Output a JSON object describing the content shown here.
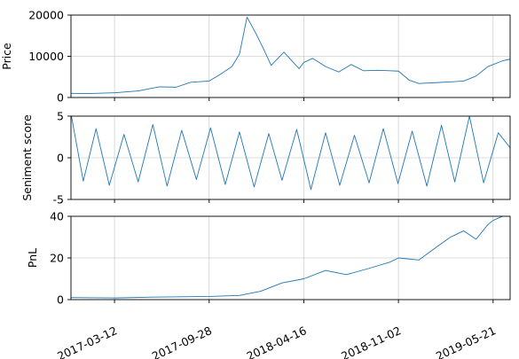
{
  "chart_data": [
    {
      "type": "line",
      "ylabel": "Price",
      "ylim": [
        0,
        20000
      ],
      "yticks": [
        0,
        10000,
        20000
      ],
      "grid": true,
      "color": "#1f77b4",
      "series": [
        {
          "x": [
            "2016-12-10",
            "2017-01-15",
            "2017-03-12",
            "2017-05-01",
            "2017-06-15",
            "2017-07-20",
            "2017-08-20",
            "2017-09-28",
            "2017-10-20",
            "2017-11-15",
            "2017-12-01",
            "2017-12-17",
            "2018-01-05",
            "2018-01-20",
            "2018-02-06",
            "2018-03-05",
            "2018-04-06",
            "2018-04-16",
            "2018-05-05",
            "2018-06-01",
            "2018-06-29",
            "2018-07-25",
            "2018-08-20",
            "2018-09-20",
            "2018-10-15",
            "2018-11-02",
            "2018-11-25",
            "2018-12-15",
            "2019-01-20",
            "2019-02-20",
            "2019-03-20",
            "2019-04-15",
            "2019-05-10",
            "2019-05-21",
            "2019-06-10",
            "2019-06-26"
          ],
          "y": [
            1000,
            950,
            1150,
            1600,
            2600,
            2500,
            3700,
            4000,
            5500,
            7500,
            10500,
            19500,
            15500,
            12000,
            7800,
            11000,
            7000,
            8500,
            9500,
            7500,
            6200,
            8000,
            6500,
            6600,
            6500,
            6400,
            4200,
            3400,
            3600,
            3800,
            4000,
            5200,
            7500,
            8000,
            8900,
            9300
          ]
        }
      ]
    },
    {
      "type": "line",
      "ylabel": "Seniment score",
      "ylim": [
        -5,
        5
      ],
      "yticks": [
        -5,
        0,
        5
      ],
      "grid": true,
      "color": "#1f77b4",
      "series": [
        {
          "x": [
            "2016-12-10",
            "2017-01-05",
            "2017-02-01",
            "2017-03-01",
            "2017-04-01",
            "2017-05-01",
            "2017-06-01",
            "2017-07-01",
            "2017-08-01",
            "2017-09-01",
            "2017-10-01",
            "2017-11-01",
            "2017-12-01",
            "2018-01-01",
            "2018-02-01",
            "2018-03-01",
            "2018-04-01",
            "2018-05-01",
            "2018-06-01",
            "2018-07-01",
            "2018-08-01",
            "2018-09-01",
            "2018-10-01",
            "2018-11-01",
            "2018-12-01",
            "2019-01-01",
            "2019-02-01",
            "2019-03-01",
            "2019-04-01",
            "2019-05-01",
            "2019-06-01",
            "2019-06-26"
          ],
          "y": [
            5.3,
            -2.8,
            3.5,
            -3.3,
            2.8,
            -2.9,
            4.0,
            -3.4,
            3.3,
            -2.6,
            3.6,
            -3.2,
            3.1,
            -3.5,
            2.9,
            -2.7,
            3.4,
            -3.8,
            3.0,
            -3.3,
            2.7,
            -3.0,
            3.5,
            -3.1,
            3.2,
            -3.4,
            3.9,
            -2.9,
            5.0,
            -3.0,
            3.0,
            1.2
          ]
        }
      ]
    },
    {
      "type": "line",
      "ylabel": "PnL",
      "ylim": [
        0,
        40
      ],
      "yticks": [
        0,
        20,
        40
      ],
      "grid": true,
      "color": "#1f77b4",
      "xticks": [
        "2017-03-12",
        "2017-09-28",
        "2018-04-16",
        "2018-11-02",
        "2019-05-21"
      ],
      "series": [
        {
          "x": [
            "2016-12-10",
            "2017-03-12",
            "2017-06-01",
            "2017-09-28",
            "2017-12-01",
            "2018-01-15",
            "2018-03-01",
            "2018-04-16",
            "2018-06-01",
            "2018-07-15",
            "2018-09-01",
            "2018-10-15",
            "2018-11-02",
            "2018-12-15",
            "2019-01-20",
            "2019-02-20",
            "2019-03-20",
            "2019-04-15",
            "2019-05-10",
            "2019-05-21",
            "2019-06-10",
            "2019-06-26"
          ],
          "y": [
            1.0,
            0.8,
            1.2,
            1.5,
            2.0,
            4.0,
            8.0,
            10.0,
            14.0,
            12.0,
            15.0,
            18.0,
            20.0,
            19.0,
            25.0,
            30.0,
            33.0,
            29.0,
            36.0,
            38.0,
            40.0,
            42.0
          ]
        }
      ]
    }
  ]
}
